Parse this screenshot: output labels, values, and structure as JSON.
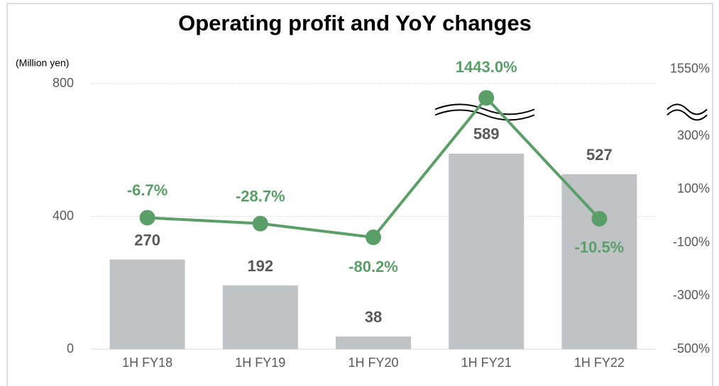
{
  "chart_data": {
    "type": "bar",
    "title": "Operating profit and YoY changes",
    "y_axis_label": "(Million yen)",
    "categories": [
      "1H FY18",
      "1H FY19",
      "1H FY20",
      "1H FY21",
      "1H FY22"
    ],
    "series": [
      {
        "type": "bar",
        "color": "#bfc3c5",
        "values": [
          270,
          192,
          38,
          589,
          527
        ]
      },
      {
        "type": "line",
        "color": "#5a9e68",
        "axis": "y2",
        "values": [
          -6.7,
          -28.7,
          -80.2,
          1443.0,
          -10.5
        ],
        "value_labels": [
          "-6.7%",
          "-28.7%",
          "-80.2%",
          "1443.0%",
          "-10.5%"
        ]
      }
    ],
    "ylim": [
      0,
      800
    ],
    "yticks": [
      0,
      400,
      800
    ],
    "y2lim": [
      -500,
      1550
    ],
    "y2ticks": [
      {
        "value": -500,
        "label": "-500%"
      },
      {
        "value": -300,
        "label": "-300%"
      },
      {
        "value": -100,
        "label": "-100%"
      },
      {
        "value": 100,
        "label": "100%"
      },
      {
        "value": 300,
        "label": "300%"
      },
      {
        "value": 1550,
        "label": "1550%"
      }
    ],
    "y2_break": [
      400,
      1400
    ],
    "grid": true
  }
}
